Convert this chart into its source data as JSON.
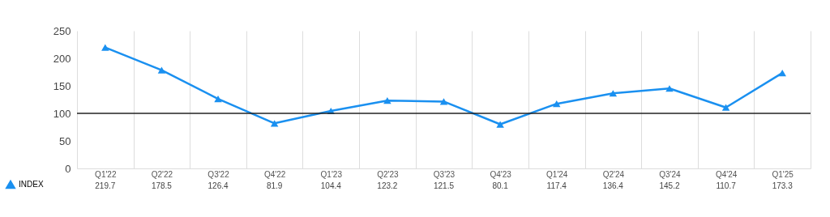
{
  "chart_data": {
    "type": "line",
    "categories": [
      "Q1'22",
      "Q2'22",
      "Q3'22",
      "Q4'22",
      "Q1'23",
      "Q2'23",
      "Q3'23",
      "Q4'23",
      "Q1'24",
      "Q2'24",
      "Q3'24",
      "Q4'24",
      "Q1'25"
    ],
    "series": [
      {
        "name": "INDEX",
        "color": "#1a90f0",
        "values": [
          219.7,
          178.5,
          126.4,
          81.9,
          104.4,
          123.2,
          121.5,
          80.1,
          117.4,
          136.4,
          145.2,
          110.7,
          173.3
        ]
      }
    ],
    "ylim": [
      0,
      250
    ],
    "yticks": [
      0,
      50,
      100,
      150,
      200,
      250
    ],
    "ref_lines": [
      {
        "axis": "y",
        "value": 100,
        "color": "#222222"
      }
    ],
    "grid": "x",
    "marker": "triangle",
    "line_style": "solid",
    "data_labels": true,
    "legend": "bottom left"
  }
}
